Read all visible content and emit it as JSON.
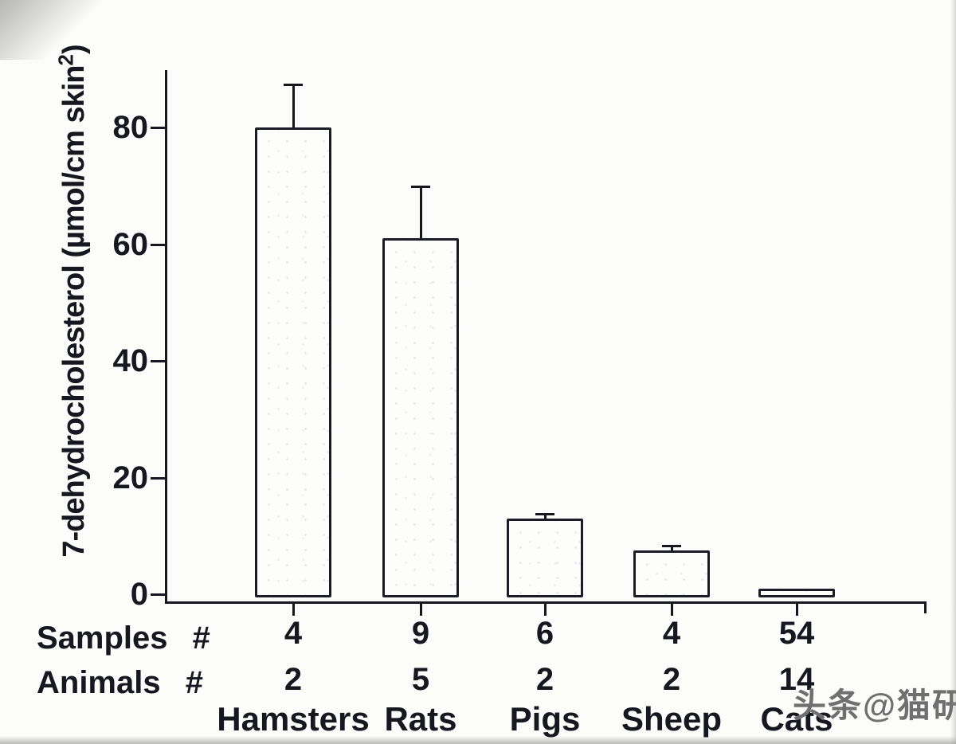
{
  "figure": {
    "watermark": "头条@猫研所"
  },
  "chart_data": {
    "type": "bar",
    "title": "",
    "xlabel": "",
    "ylabel": "7-dehydrocholesterol (µmol/cm skin²)",
    "ylabel_parts": {
      "main": "7-dehydrocholesterol (µmol/cm skin",
      "sup": "2",
      "close": ")"
    },
    "categories": [
      "Hamsters",
      "Rats",
      "Pigs",
      "Sheep",
      "Cats"
    ],
    "values": [
      80,
      61,
      13,
      7.5,
      1
    ],
    "errors_plus": [
      7.5,
      9,
      0.8,
      0.8,
      0
    ],
    "counts": {
      "samples_label": "Samples #",
      "animals_label": "Animals #",
      "samples": [
        4,
        9,
        6,
        4,
        54
      ],
      "animals": [
        2,
        5,
        2,
        2,
        14
      ]
    },
    "yticks": [
      0,
      20,
      40,
      60,
      80
    ],
    "ylim": [
      0,
      90
    ],
    "grid": false,
    "legend": null,
    "bar_fill": "#fdfdfc",
    "ink_color": "#17171f"
  }
}
